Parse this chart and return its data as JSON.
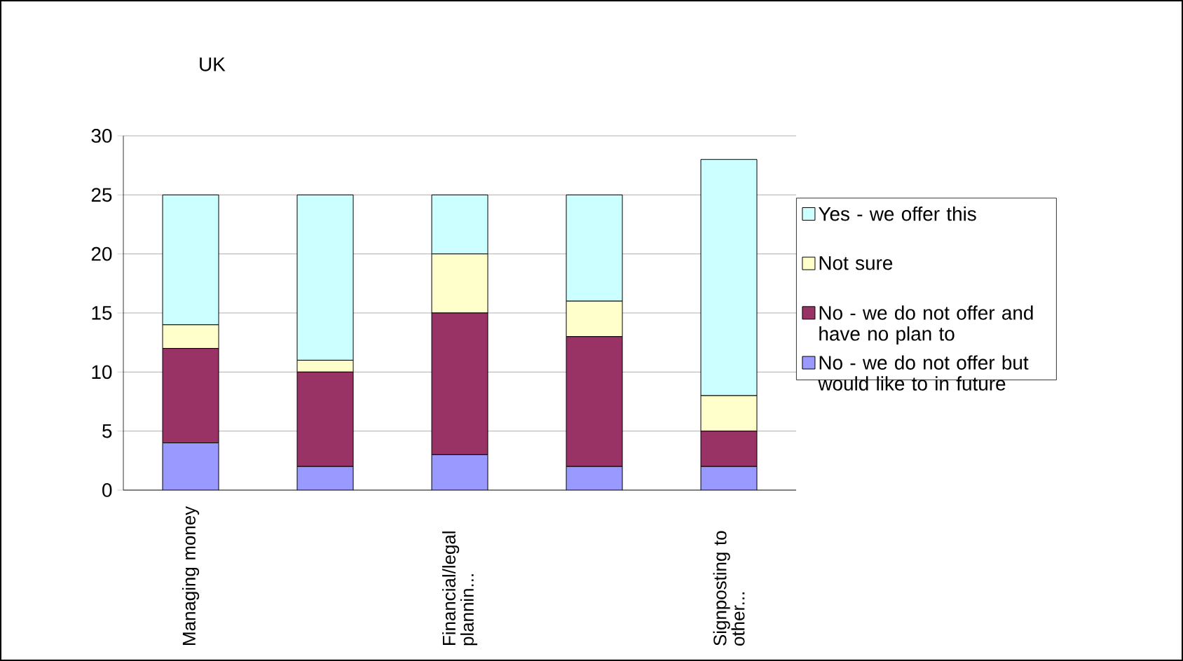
{
  "chart_data": {
    "type": "bar",
    "title": "UK",
    "stacked": true,
    "categories": [
      "Managing money",
      null,
      "Financial/legal plannin...",
      null,
      "Signposting to other..."
    ],
    "series": [
      {
        "name": "No - we do not offer but would like to in future",
        "color": "#9999ff",
        "values": [
          4,
          2,
          3,
          2,
          2
        ]
      },
      {
        "name": "No - we do not offer and have no plan to",
        "color": "#993366",
        "values": [
          8,
          8,
          12,
          11,
          3
        ]
      },
      {
        "name": "Not sure",
        "color": "#ffffcc",
        "values": [
          2,
          1,
          5,
          3,
          3
        ]
      },
      {
        "name": "Yes - we offer this",
        "color": "#ccffff",
        "values": [
          11,
          14,
          5,
          9,
          20
        ]
      }
    ],
    "ylim": [
      0,
      30
    ],
    "yticks": [
      0,
      5,
      10,
      15,
      20,
      25,
      30
    ],
    "grid": "y",
    "legend": "right"
  }
}
